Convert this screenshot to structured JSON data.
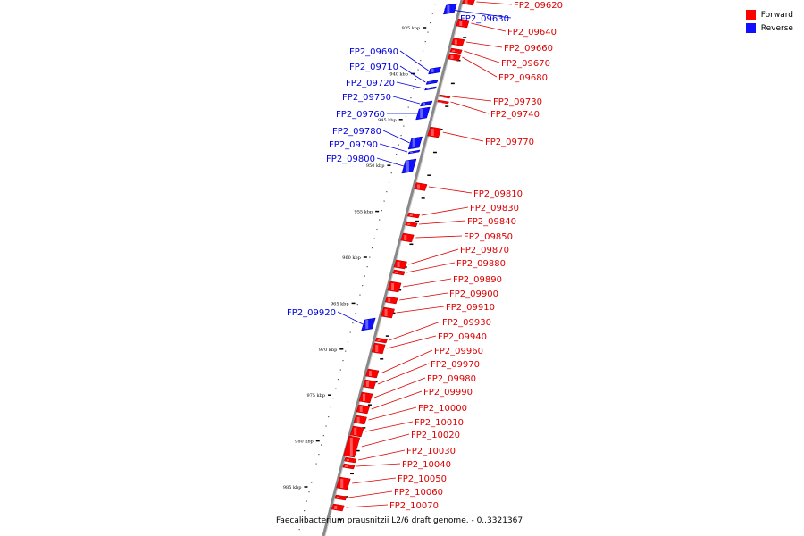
{
  "legend": {
    "forward": {
      "label": "Forward",
      "color": "#ff0000"
    },
    "reverse": {
      "label": "Reverse",
      "color": "#1010ff"
    }
  },
  "caption": "Faecalibacterium prausnitzii L2/6 draft genome. - 0..3321367",
  "colors": {
    "backbone": "#888888",
    "tick": "#000000",
    "forward_line": "#dd0000",
    "reverse_line": "#0000dd"
  },
  "ticks": [
    "935 kbp",
    "940 kbp",
    "945 kbp",
    "950 kbp",
    "955 kbp",
    "960 kbp",
    "965 kbp",
    "970 kbp",
    "975 kbp",
    "980 kbp",
    "985 kbp"
  ],
  "genes": [
    {
      "id": "FP2_09620",
      "strand": "forward"
    },
    {
      "id": "FP2_09630",
      "strand": "reverse"
    },
    {
      "id": "FP2_09640",
      "strand": "forward"
    },
    {
      "id": "FP2_09660",
      "strand": "forward"
    },
    {
      "id": "FP2_09670",
      "strand": "forward"
    },
    {
      "id": "FP2_09680",
      "strand": "forward"
    },
    {
      "id": "FP2_09690",
      "strand": "reverse"
    },
    {
      "id": "FP2_09710",
      "strand": "reverse"
    },
    {
      "id": "FP2_09720",
      "strand": "reverse"
    },
    {
      "id": "FP2_09750",
      "strand": "reverse"
    },
    {
      "id": "FP2_09760",
      "strand": "reverse"
    },
    {
      "id": "FP2_09730",
      "strand": "forward"
    },
    {
      "id": "FP2_09740",
      "strand": "forward"
    },
    {
      "id": "FP2_09770",
      "strand": "forward"
    },
    {
      "id": "FP2_09780",
      "strand": "reverse"
    },
    {
      "id": "FP2_09790",
      "strand": "reverse"
    },
    {
      "id": "FP2_09800",
      "strand": "reverse"
    },
    {
      "id": "FP2_09810",
      "strand": "forward"
    },
    {
      "id": "FP2_09830",
      "strand": "forward"
    },
    {
      "id": "FP2_09840",
      "strand": "forward"
    },
    {
      "id": "FP2_09850",
      "strand": "forward"
    },
    {
      "id": "FP2_09870",
      "strand": "forward"
    },
    {
      "id": "FP2_09880",
      "strand": "forward"
    },
    {
      "id": "FP2_09890",
      "strand": "forward"
    },
    {
      "id": "FP2_09900",
      "strand": "forward"
    },
    {
      "id": "FP2_09910",
      "strand": "forward"
    },
    {
      "id": "FP2_09920",
      "strand": "reverse"
    },
    {
      "id": "FP2_09930",
      "strand": "forward"
    },
    {
      "id": "FP2_09940",
      "strand": "forward"
    },
    {
      "id": "FP2_09960",
      "strand": "forward"
    },
    {
      "id": "FP2_09970",
      "strand": "forward"
    },
    {
      "id": "FP2_09980",
      "strand": "forward"
    },
    {
      "id": "FP2_09990",
      "strand": "forward"
    },
    {
      "id": "FP2_10000",
      "strand": "forward"
    },
    {
      "id": "FP2_10010",
      "strand": "forward"
    },
    {
      "id": "FP2_10020",
      "strand": "forward"
    },
    {
      "id": "FP2_10030",
      "strand": "forward"
    },
    {
      "id": "FP2_10040",
      "strand": "forward"
    },
    {
      "id": "FP2_10050",
      "strand": "forward"
    },
    {
      "id": "FP2_10060",
      "strand": "forward"
    },
    {
      "id": "FP2_10070",
      "strand": "forward"
    }
  ]
}
